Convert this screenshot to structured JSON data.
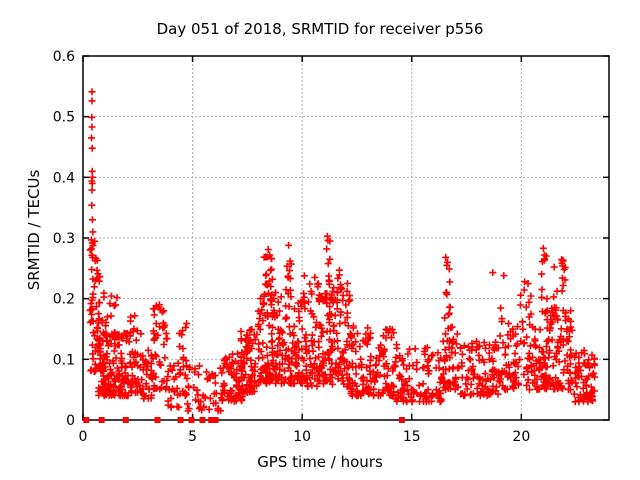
{
  "chart_data": {
    "type": "scatter",
    "title": "Day 051 of 2018, SRMTID for receiver p556",
    "xlabel": "GPS time / hours",
    "ylabel": "SRMTID / TECUs",
    "xlim": [
      0,
      24
    ],
    "ylim": [
      0,
      0.6
    ],
    "xticks": [
      {
        "v": 0,
        "label": "0"
      },
      {
        "v": 5,
        "label": "5"
      },
      {
        "v": 10,
        "label": "10"
      },
      {
        "v": 15,
        "label": "15"
      },
      {
        "v": 20,
        "label": "20"
      }
    ],
    "yticks": [
      {
        "v": 0,
        "label": "0"
      },
      {
        "v": 0.1,
        "label": "0.1"
      },
      {
        "v": 0.2,
        "label": "0.2"
      },
      {
        "v": 0.3,
        "label": "0.3"
      },
      {
        "v": 0.4,
        "label": "0.4"
      },
      {
        "v": 0.5,
        "label": "0.5"
      },
      {
        "v": 0.6,
        "label": "0.6"
      }
    ],
    "grid": true,
    "grid_color": "#b0b0b0",
    "legend": "none",
    "marker": "plus",
    "marker_color": "#ff0000",
    "zero_marker": "filled-square",
    "zero_markers_t": [
      0.15,
      0.85,
      1.95,
      3.4,
      4.45,
      4.95,
      5.45,
      5.85,
      6.05,
      14.55
    ],
    "notable_points": [
      [
        0.41,
        0.541
      ],
      [
        0.41,
        0.526
      ],
      [
        0.4,
        0.499
      ],
      [
        0.41,
        0.483
      ],
      [
        0.39,
        0.465
      ],
      [
        0.42,
        0.448
      ],
      [
        0.42,
        0.41
      ],
      [
        0.43,
        0.4
      ],
      [
        0.4,
        0.394
      ],
      [
        0.42,
        0.39
      ],
      [
        0.41,
        0.379
      ],
      [
        0.4,
        0.354
      ],
      [
        0.43,
        0.33
      ],
      [
        0.45,
        0.31
      ],
      [
        0.42,
        0.292
      ],
      [
        0.38,
        0.282
      ],
      [
        0.44,
        0.268
      ],
      [
        8.45,
        0.281
      ],
      [
        8.52,
        0.272
      ],
      [
        9.38,
        0.288
      ],
      [
        9.45,
        0.262
      ],
      [
        11.12,
        0.282
      ],
      [
        11.15,
        0.303
      ],
      [
        11.18,
        0.296
      ],
      [
        11.7,
        0.247
      ],
      [
        16.55,
        0.268
      ],
      [
        16.6,
        0.255
      ],
      [
        18.7,
        0.243
      ],
      [
        19.2,
        0.238
      ],
      [
        20.15,
        0.228
      ],
      [
        21.0,
        0.283
      ],
      [
        21.05,
        0.272
      ],
      [
        21.5,
        0.252
      ],
      [
        21.9,
        0.262
      ],
      [
        21.95,
        0.248
      ]
    ],
    "density_bands": [
      [
        0.3,
        0.55,
        14,
        0.15,
        0.3,
        1.0
      ],
      [
        0.35,
        1.0,
        60,
        0.08,
        0.27,
        1.8
      ],
      [
        0.7,
        2.2,
        150,
        0.04,
        0.145,
        1.6
      ],
      [
        1.0,
        1.6,
        18,
        0.12,
        0.205,
        1.4
      ],
      [
        2.15,
        2.75,
        45,
        0.045,
        0.175,
        1.5
      ],
      [
        2.7,
        3.2,
        30,
        0.035,
        0.115,
        1.5
      ],
      [
        3.2,
        3.85,
        45,
        0.05,
        0.195,
        1.4
      ],
      [
        3.85,
        4.45,
        25,
        0.02,
        0.095,
        1.4
      ],
      [
        4.4,
        4.75,
        18,
        0.04,
        0.16,
        1.3
      ],
      [
        4.75,
        6.35,
        45,
        0.015,
        0.09,
        1.4
      ],
      [
        6.3,
        7.3,
        70,
        0.03,
        0.115,
        1.5
      ],
      [
        7.2,
        7.95,
        70,
        0.045,
        0.15,
        1.5
      ],
      [
        7.95,
        8.85,
        95,
        0.06,
        0.21,
        1.5
      ],
      [
        8.25,
        8.65,
        16,
        0.19,
        0.275,
        1.0
      ],
      [
        8.85,
        10.25,
        120,
        0.06,
        0.205,
        1.6
      ],
      [
        9.25,
        9.5,
        9,
        0.2,
        0.285,
        1.0
      ],
      [
        9.95,
        10.15,
        6,
        0.19,
        0.245,
        1.0
      ],
      [
        10.25,
        12.2,
        170,
        0.055,
        0.225,
        1.6
      ],
      [
        10.55,
        10.8,
        7,
        0.19,
        0.245,
        1.0
      ],
      [
        11.0,
        11.3,
        12,
        0.19,
        0.3,
        1.0
      ],
      [
        11.6,
        11.85,
        8,
        0.17,
        0.245,
        1.0
      ],
      [
        12.2,
        14.2,
        135,
        0.04,
        0.155,
        1.7
      ],
      [
        14.2,
        16.35,
        110,
        0.03,
        0.125,
        1.6
      ],
      [
        16.35,
        17.15,
        55,
        0.05,
        0.155,
        1.4
      ],
      [
        16.45,
        16.85,
        12,
        0.15,
        0.265,
        1.0
      ],
      [
        17.15,
        19.0,
        100,
        0.04,
        0.135,
        1.6
      ],
      [
        19.0,
        19.5,
        30,
        0.05,
        0.185,
        1.3
      ],
      [
        19.5,
        21.0,
        80,
        0.05,
        0.155,
        1.5
      ],
      [
        19.9,
        20.45,
        14,
        0.13,
        0.225,
        1.1
      ],
      [
        20.9,
        21.2,
        11,
        0.16,
        0.285,
        1.0
      ],
      [
        21.0,
        22.35,
        110,
        0.05,
        0.185,
        1.6
      ],
      [
        21.45,
        21.65,
        8,
        0.16,
        0.24,
        1.0
      ],
      [
        21.8,
        22.05,
        12,
        0.15,
        0.265,
        1.0
      ],
      [
        22.35,
        23.35,
        70,
        0.03,
        0.115,
        1.6
      ]
    ],
    "seed": 51
  }
}
